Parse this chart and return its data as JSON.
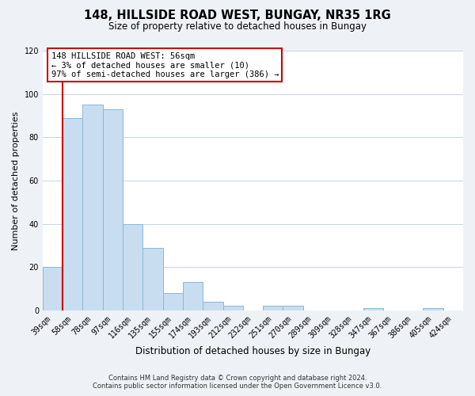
{
  "title": "148, HILLSIDE ROAD WEST, BUNGAY, NR35 1RG",
  "subtitle": "Size of property relative to detached houses in Bungay",
  "xlabel": "Distribution of detached houses by size in Bungay",
  "ylabel": "Number of detached properties",
  "bar_color": "#c8ddf0",
  "bar_edge_color": "#8ab8d8",
  "highlight_line_color": "#cc0000",
  "bin_labels": [
    "39sqm",
    "58sqm",
    "78sqm",
    "97sqm",
    "116sqm",
    "135sqm",
    "155sqm",
    "174sqm",
    "193sqm",
    "212sqm",
    "232sqm",
    "251sqm",
    "270sqm",
    "289sqm",
    "309sqm",
    "328sqm",
    "347sqm",
    "367sqm",
    "386sqm",
    "405sqm",
    "424sqm"
  ],
  "bar_heights": [
    20,
    89,
    95,
    93,
    40,
    29,
    8,
    13,
    4,
    2,
    0,
    2,
    2,
    0,
    0,
    0,
    1,
    0,
    0,
    1,
    0
  ],
  "ylim": [
    0,
    120
  ],
  "yticks": [
    0,
    20,
    40,
    60,
    80,
    100,
    120
  ],
  "annotation_lines": [
    "148 HILLSIDE ROAD WEST: 56sqm",
    "← 3% of detached houses are smaller (10)",
    "97% of semi-detached houses are larger (386) →"
  ],
  "footer_line1": "Contains HM Land Registry data © Crown copyright and database right 2024.",
  "footer_line2": "Contains public sector information licensed under the Open Government Licence v3.0.",
  "background_color": "#eef2f7",
  "plot_background_color": "#ffffff",
  "grid_color": "#c5d5e5"
}
